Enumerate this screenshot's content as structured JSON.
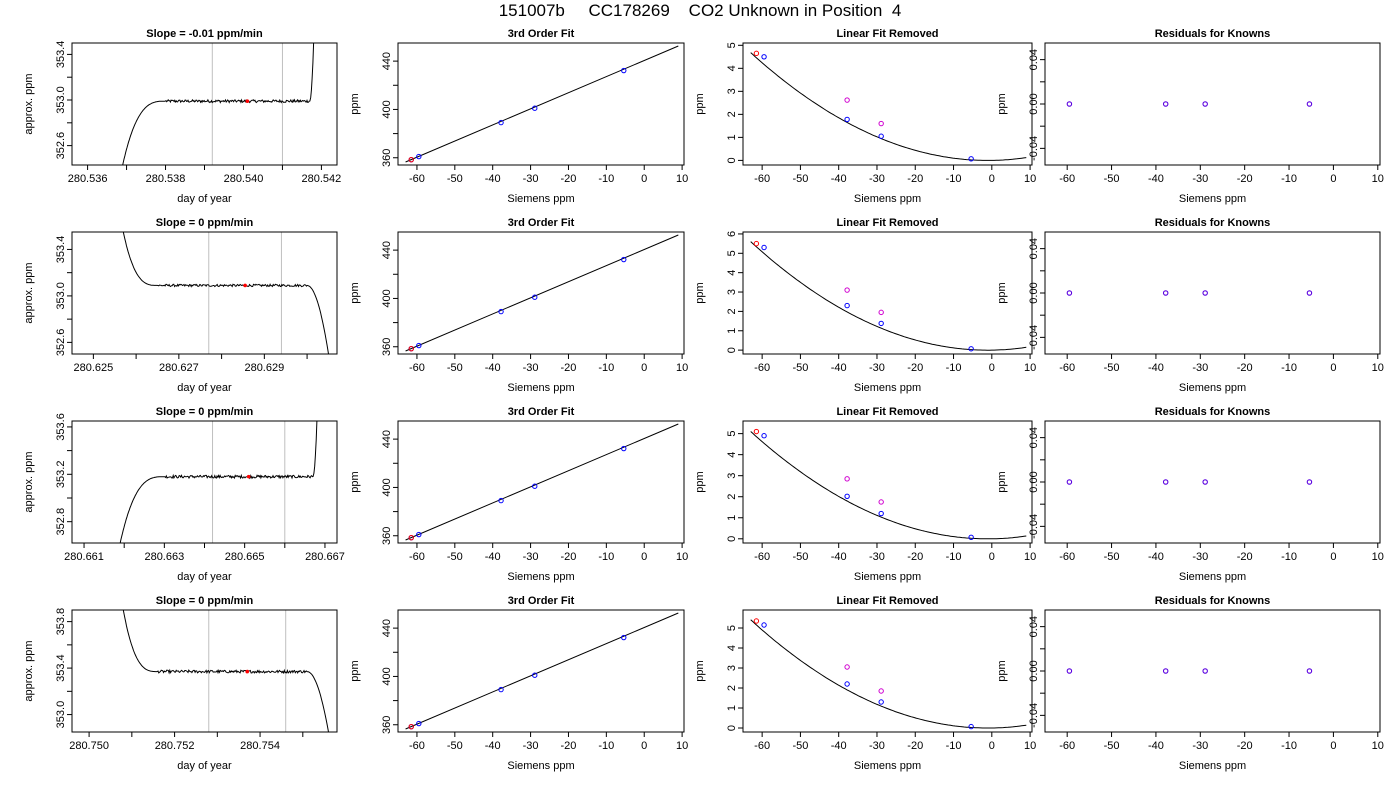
{
  "title": "151007b     CC178269    CO2 Unknown in Position  4",
  "colors": {
    "line": "#000000",
    "box": "#000000",
    "vline": "#bfbfbf",
    "red": "#ff0000",
    "blue": "#0000ff",
    "magenta": "#d000d0",
    "purple": "#5a00e0"
  },
  "chart_data": [
    {
      "type": "line",
      "title": "Slope =  -0.01  ppm/min",
      "xlabel": "day of year",
      "ylabel": "approx. ppm",
      "xlim": [
        280.5356,
        280.5424
      ],
      "ylim": [
        352.43,
        353.5
      ],
      "xticks": [
        280.536,
        280.537,
        280.538,
        280.539,
        280.54,
        280.541,
        280.542
      ],
      "xtick_labels": [
        "280.536",
        "",
        "280.538",
        "",
        "280.540",
        "",
        "280.542"
      ],
      "yticks": [
        352.6,
        352.8,
        353.0,
        353.2,
        353.4
      ],
      "ytick_labels": [
        "352.6",
        "",
        "353.0",
        "",
        "353.4"
      ],
      "vlines": [
        280.5392,
        280.541
      ],
      "marker": [
        280.5401,
        352.99
      ],
      "trace": {
        "x_start": 280.5369,
        "x_rise_end": 280.538,
        "x_flat_end": 280.5417,
        "x_end": 280.5418,
        "y_start": 352.43,
        "y_flat": 352.99,
        "y_end": 353.5,
        "lead_type": "rise",
        "noise": 0.012
      }
    },
    {
      "type": "scatter",
      "title": "3rd Order Fit",
      "xlabel": "Siemens ppm",
      "ylabel": "ppm",
      "xlim": [
        -65,
        10.5
      ],
      "ylim": [
        354,
        455
      ],
      "xticks": [
        -60,
        -50,
        -40,
        -30,
        -20,
        -10,
        0,
        10
      ],
      "xtick_labels": [
        "-60",
        "-50",
        "-40",
        "-30",
        "-20",
        "-10",
        "0",
        "10"
      ],
      "yticks": [
        360,
        380,
        400,
        420,
        440
      ],
      "ytick_labels": [
        "360",
        "",
        "400",
        "",
        "440"
      ],
      "fit_line": [
        [
          -63,
          356.5
        ],
        [
          9,
          452.5
        ]
      ],
      "points_blue": [
        [
          -61.5,
          358.4
        ],
        [
          -59.5,
          361
        ],
        [
          -37.8,
          389.1
        ],
        [
          -28.9,
          401
        ],
        [
          -5.4,
          432.2
        ]
      ],
      "points_red": [
        [
          -61.5,
          358.4
        ]
      ]
    },
    {
      "type": "scatter",
      "title": "Linear Fit Removed",
      "xlabel": "Siemens ppm",
      "ylabel": "ppm",
      "xlim": [
        -65,
        10.5
      ],
      "ylim": [
        -0.2,
        5.1
      ],
      "xticks": [
        -60,
        -50,
        -40,
        -30,
        -20,
        -10,
        0,
        10
      ],
      "xtick_labels": [
        "-60",
        "-50",
        "-40",
        "-30",
        "-20",
        "-10",
        "0",
        "10"
      ],
      "yticks": [
        0,
        1,
        2,
        3,
        4,
        5
      ],
      "ytick_labels": [
        "0",
        "1",
        "2",
        "3",
        "4",
        "5"
      ],
      "curve_coeffs": [
        0.00122,
        0.0025
      ],
      "curve_x": [
        -63,
        9
      ],
      "points_blue": [
        [
          -59.5,
          4.5
        ],
        [
          -37.8,
          1.78
        ],
        [
          -28.9,
          1.05
        ],
        [
          -5.4,
          0.07
        ]
      ],
      "points_red": [
        [
          -61.5,
          4.65
        ]
      ],
      "points_magenta": [
        [
          -37.8,
          2.62
        ],
        [
          -28.9,
          1.6
        ]
      ]
    },
    {
      "type": "scatter",
      "title": "Residuals for Knowns",
      "xlabel": "Siemens ppm",
      "ylabel": "ppm",
      "xlim": [
        -65,
        10.5
      ],
      "ylim": [
        -0.055,
        0.055
      ],
      "xticks": [
        -60,
        -50,
        -40,
        -30,
        -20,
        -10,
        0,
        10
      ],
      "xtick_labels": [
        "-60",
        "-50",
        "-40",
        "-30",
        "-20",
        "-10",
        "0",
        "10"
      ],
      "yticks": [
        -0.04,
        -0.02,
        0,
        0.02,
        0.04
      ],
      "ytick_labels": [
        "-0.04",
        "",
        "0.00",
        "",
        "0.04"
      ],
      "points_purple": [
        [
          -59.5,
          0
        ],
        [
          -37.8,
          0
        ],
        [
          -28.9,
          0
        ],
        [
          -5.4,
          0
        ]
      ]
    },
    {
      "type": "line",
      "title": "Slope =  0  ppm/min",
      "xlabel": "day of year",
      "ylabel": "approx. ppm",
      "xlim": [
        280.6245,
        280.6307
      ],
      "ylim": [
        352.5,
        353.55
      ],
      "xticks": [
        280.625,
        280.626,
        280.627,
        280.628,
        280.629,
        280.63
      ],
      "xtick_labels": [
        "280.625",
        "",
        "280.627",
        "",
        "280.629",
        ""
      ],
      "yticks": [
        352.6,
        352.8,
        353.0,
        353.2,
        353.4
      ],
      "ytick_labels": [
        "352.6",
        "",
        "353.0",
        "",
        "353.4"
      ],
      "vlines": [
        280.6277,
        280.6294
      ],
      "marker": [
        280.62855,
        353.09
      ],
      "trace": {
        "x_start": 280.6257,
        "x_rise_end": 280.6265,
        "x_flat_end": 280.63,
        "x_end": 280.6305,
        "y_start": 353.55,
        "y_flat": 353.09,
        "y_end": 352.5,
        "lead_type": "fall",
        "noise": 0.01
      }
    },
    {
      "type": "scatter",
      "title": "3rd Order Fit",
      "xlabel": "Siemens ppm",
      "ylabel": "ppm",
      "xlim": [
        -65,
        10.5
      ],
      "ylim": [
        354,
        455
      ],
      "xticks": [
        -60,
        -50,
        -40,
        -30,
        -20,
        -10,
        0,
        10
      ],
      "xtick_labels": [
        "-60",
        "-50",
        "-40",
        "-30",
        "-20",
        "-10",
        "0",
        "10"
      ],
      "yticks": [
        360,
        380,
        400,
        420,
        440
      ],
      "ytick_labels": [
        "360",
        "",
        "400",
        "",
        "440"
      ],
      "fit_line": [
        [
          -63,
          356.5
        ],
        [
          9,
          452.5
        ]
      ],
      "points_blue": [
        [
          -61.5,
          358.4
        ],
        [
          -59.5,
          361
        ],
        [
          -37.8,
          389.1
        ],
        [
          -28.9,
          401
        ],
        [
          -5.4,
          432.2
        ]
      ],
      "points_red": [
        [
          -61.5,
          358.4
        ]
      ]
    },
    {
      "type": "scatter",
      "title": "Linear Fit Removed",
      "xlabel": "Siemens ppm",
      "ylabel": "ppm",
      "xlim": [
        -65,
        10.5
      ],
      "ylim": [
        -0.2,
        6.1
      ],
      "xticks": [
        -60,
        -50,
        -40,
        -30,
        -20,
        -10,
        0,
        10
      ],
      "xtick_labels": [
        "-60",
        "-50",
        "-40",
        "-30",
        "-20",
        "-10",
        "0",
        "10"
      ],
      "yticks": [
        0,
        1,
        2,
        3,
        4,
        5,
        6
      ],
      "ytick_labels": [
        "0",
        "1",
        "2",
        "3",
        "4",
        "5",
        "6"
      ],
      "curve_coeffs": [
        0.00146,
        0.003
      ],
      "curve_x": [
        -63,
        9
      ],
      "points_blue": [
        [
          -59.5,
          5.3
        ],
        [
          -37.8,
          2.3
        ],
        [
          -28.9,
          1.38
        ],
        [
          -5.4,
          0.07
        ]
      ],
      "points_red": [
        [
          -61.5,
          5.5
        ]
      ],
      "points_magenta": [
        [
          -37.8,
          3.1
        ],
        [
          -28.9,
          1.95
        ]
      ]
    },
    {
      "type": "scatter",
      "title": "Residuals for Knowns",
      "xlabel": "Siemens ppm",
      "ylabel": "ppm",
      "xlim": [
        -65,
        10.5
      ],
      "ylim": [
        -0.055,
        0.055
      ],
      "xticks": [
        -60,
        -50,
        -40,
        -30,
        -20,
        -10,
        0,
        10
      ],
      "xtick_labels": [
        "-60",
        "-50",
        "-40",
        "-30",
        "-20",
        "-10",
        "0",
        "10"
      ],
      "yticks": [
        -0.04,
        -0.02,
        0,
        0.02,
        0.04
      ],
      "ytick_labels": [
        "-0.04",
        "",
        "0.00",
        "",
        "0.04"
      ],
      "points_purple": [
        [
          -59.5,
          0
        ],
        [
          -37.8,
          0
        ],
        [
          -28.9,
          0
        ],
        [
          -5.4,
          0
        ]
      ]
    },
    {
      "type": "line",
      "title": "Slope =  0  ppm/min",
      "xlabel": "day of year",
      "ylabel": "approx. ppm",
      "xlim": [
        280.6607,
        280.6673
      ],
      "ylim": [
        352.62,
        353.65
      ],
      "xticks": [
        280.661,
        280.662,
        280.663,
        280.664,
        280.665,
        280.666,
        280.667
      ],
      "xtick_labels": [
        "280.661",
        "",
        "280.663",
        "",
        "280.665",
        "",
        "280.667"
      ],
      "yticks": [
        352.8,
        353.0,
        353.2,
        353.4,
        353.6
      ],
      "ytick_labels": [
        "352.8",
        "",
        "353.2",
        "",
        "353.6"
      ],
      "vlines": [
        280.6642,
        280.666
      ],
      "marker": [
        280.6651,
        353.18
      ],
      "trace": {
        "x_start": 280.6619,
        "x_rise_end": 280.663,
        "x_flat_end": 280.6667,
        "x_end": 280.6668,
        "y_start": 352.62,
        "y_flat": 353.18,
        "y_end": 353.65,
        "lead_type": "rise",
        "noise": 0.012
      }
    },
    {
      "type": "scatter",
      "title": "3rd Order Fit",
      "xlabel": "Siemens ppm",
      "ylabel": "ppm",
      "xlim": [
        -65,
        10.5
      ],
      "ylim": [
        354,
        455
      ],
      "xticks": [
        -60,
        -50,
        -40,
        -30,
        -20,
        -10,
        0,
        10
      ],
      "xtick_labels": [
        "-60",
        "-50",
        "-40",
        "-30",
        "-20",
        "-10",
        "0",
        "10"
      ],
      "yticks": [
        360,
        380,
        400,
        420,
        440
      ],
      "ytick_labels": [
        "360",
        "",
        "400",
        "",
        "440"
      ],
      "fit_line": [
        [
          -63,
          356.5
        ],
        [
          9,
          452.5
        ]
      ],
      "points_blue": [
        [
          -61.5,
          358.4
        ],
        [
          -59.5,
          361
        ],
        [
          -37.8,
          389.1
        ],
        [
          -28.9,
          401
        ],
        [
          -5.4,
          432.2
        ]
      ],
      "points_red": [
        [
          -61.5,
          358.4
        ]
      ]
    },
    {
      "type": "scatter",
      "title": "Linear Fit Removed",
      "xlabel": "Siemens ppm",
      "ylabel": "ppm",
      "xlim": [
        -65,
        10.5
      ],
      "ylim": [
        -0.2,
        5.6
      ],
      "xticks": [
        -60,
        -50,
        -40,
        -30,
        -20,
        -10,
        0,
        10
      ],
      "xtick_labels": [
        "-60",
        "-50",
        "-40",
        "-30",
        "-20",
        "-10",
        "0",
        "10"
      ],
      "yticks": [
        0,
        1,
        2,
        3,
        4,
        5
      ],
      "ytick_labels": [
        "0",
        "1",
        "2",
        "3",
        "4",
        "5"
      ],
      "curve_coeffs": [
        0.00133,
        0.0028
      ],
      "curve_x": [
        -63,
        9
      ],
      "points_blue": [
        [
          -59.5,
          4.9
        ],
        [
          -37.8,
          2.02
        ],
        [
          -28.9,
          1.2
        ],
        [
          -5.4,
          0.07
        ]
      ],
      "points_red": [
        [
          -61.5,
          5.1
        ]
      ],
      "points_magenta": [
        [
          -37.8,
          2.85
        ],
        [
          -28.9,
          1.75
        ]
      ]
    },
    {
      "type": "scatter",
      "title": "Residuals for Knowns",
      "xlabel": "Siemens ppm",
      "ylabel": "ppm",
      "xlim": [
        -65,
        10.5
      ],
      "ylim": [
        -0.055,
        0.055
      ],
      "xticks": [
        -60,
        -50,
        -40,
        -30,
        -20,
        -10,
        0,
        10
      ],
      "xtick_labels": [
        "-60",
        "-50",
        "-40",
        "-30",
        "-20",
        "-10",
        "0",
        "10"
      ],
      "yticks": [
        -0.04,
        -0.02,
        0,
        0.02,
        0.04
      ],
      "ytick_labels": [
        "-0.04",
        "",
        "0.00",
        "",
        "0.04"
      ],
      "points_purple": [
        [
          -59.5,
          0
        ],
        [
          -37.8,
          0
        ],
        [
          -28.9,
          0
        ],
        [
          -5.4,
          0
        ]
      ]
    },
    {
      "type": "line",
      "title": "Slope =  0  ppm/min",
      "xlabel": "day of year",
      "ylabel": "approx. ppm",
      "xlim": [
        280.7496,
        280.7558
      ],
      "ylim": [
        352.85,
        353.9
      ],
      "xticks": [
        280.75,
        280.751,
        280.752,
        280.753,
        280.754,
        280.755
      ],
      "xtick_labels": [
        "280.750",
        "",
        "280.752",
        "",
        "280.754",
        ""
      ],
      "yticks": [
        353.0,
        353.2,
        353.4,
        353.6,
        353.8
      ],
      "ytick_labels": [
        "353.0",
        "",
        "353.4",
        "",
        "353.8"
      ],
      "vlines": [
        280.7528,
        280.7546
      ],
      "marker": [
        280.7537,
        353.37
      ],
      "trace": {
        "x_start": 280.7508,
        "x_rise_end": 280.7516,
        "x_flat_end": 280.7551,
        "x_end": 280.7556,
        "y_start": 353.9,
        "y_flat": 353.37,
        "y_end": 352.85,
        "lead_type": "fall",
        "noise": 0.012
      }
    },
    {
      "type": "scatter",
      "title": "3rd Order Fit",
      "xlabel": "Siemens ppm",
      "ylabel": "ppm",
      "xlim": [
        -65,
        10.5
      ],
      "ylim": [
        354,
        455
      ],
      "xticks": [
        -60,
        -50,
        -40,
        -30,
        -20,
        -10,
        0,
        10
      ],
      "xtick_labels": [
        "-60",
        "-50",
        "-40",
        "-30",
        "-20",
        "-10",
        "0",
        "10"
      ],
      "yticks": [
        360,
        380,
        400,
        420,
        440
      ],
      "ytick_labels": [
        "360",
        "",
        "400",
        "",
        "440"
      ],
      "fit_line": [
        [
          -63,
          356.5
        ],
        [
          9,
          452.5
        ]
      ],
      "points_blue": [
        [
          -61.5,
          358.4
        ],
        [
          -59.5,
          361
        ],
        [
          -37.8,
          389.1
        ],
        [
          -28.9,
          401
        ],
        [
          -5.4,
          432.2
        ]
      ],
      "points_red": [
        [
          -61.5,
          358.4
        ]
      ]
    },
    {
      "type": "scatter",
      "title": "Linear Fit Removed",
      "xlabel": "Siemens ppm",
      "ylabel": "ppm",
      "xlim": [
        -65,
        10.5
      ],
      "ylim": [
        -0.2,
        5.9
      ],
      "xticks": [
        -60,
        -50,
        -40,
        -30,
        -20,
        -10,
        0,
        10
      ],
      "xtick_labels": [
        "-60",
        "-50",
        "-40",
        "-30",
        "-20",
        "-10",
        "0",
        "10"
      ],
      "yticks": [
        0,
        1,
        2,
        3,
        4,
        5
      ],
      "ytick_labels": [
        "0",
        "1",
        "2",
        "3",
        "4",
        "5"
      ],
      "curve_coeffs": [
        0.00141,
        0.0029
      ],
      "curve_x": [
        -63,
        9
      ],
      "points_blue": [
        [
          -59.5,
          5.15
        ],
        [
          -37.8,
          2.2
        ],
        [
          -28.9,
          1.3
        ],
        [
          -5.4,
          0.07
        ]
      ],
      "points_red": [
        [
          -61.5,
          5.35
        ]
      ],
      "points_magenta": [
        [
          -37.8,
          3.05
        ],
        [
          -28.9,
          1.85
        ]
      ]
    },
    {
      "type": "scatter",
      "title": "Residuals for Knowns",
      "xlabel": "Siemens ppm",
      "ylabel": "ppm",
      "xlim": [
        -65,
        10.5
      ],
      "ylim": [
        -0.055,
        0.055
      ],
      "xticks": [
        -60,
        -50,
        -40,
        -30,
        -20,
        -10,
        0,
        10
      ],
      "xtick_labels": [
        "-60",
        "-50",
        "-40",
        "-30",
        "-20",
        "-10",
        "0",
        "10"
      ],
      "yticks": [
        -0.04,
        -0.02,
        0,
        0.02,
        0.04
      ],
      "ytick_labels": [
        "-0.04",
        "",
        "0.00",
        "",
        "0.04"
      ],
      "points_purple": [
        [
          -59.5,
          0
        ],
        [
          -37.8,
          0
        ],
        [
          -28.9,
          0
        ],
        [
          -5.4,
          0
        ]
      ]
    }
  ]
}
